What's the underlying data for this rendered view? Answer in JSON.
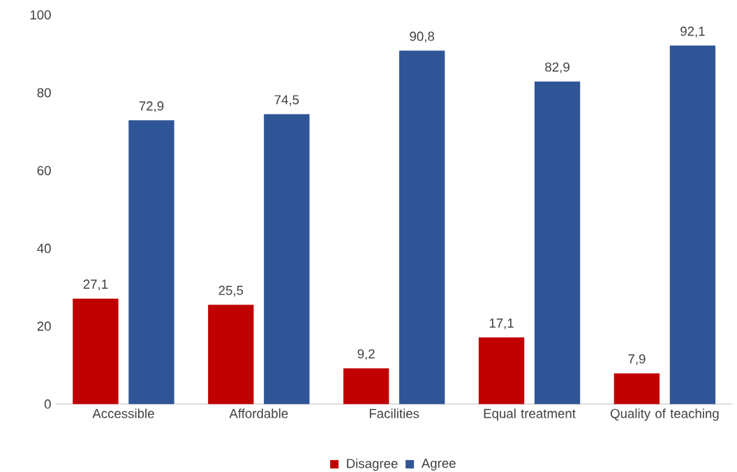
{
  "chart_data": {
    "type": "bar",
    "categories": [
      "Accessible",
      "Affordable",
      "Facilities",
      "Equal treatment",
      "Quality of teaching"
    ],
    "series": [
      {
        "name": "Disagree",
        "color": "#c00000",
        "values": [
          27.1,
          25.5,
          9.2,
          17.1,
          7.9
        ],
        "value_labels": [
          "27,1",
          "25,5",
          "9,2",
          "17,1",
          "7,9"
        ]
      },
      {
        "name": "Agree",
        "color": "#2f5597",
        "values": [
          72.9,
          74.5,
          90.8,
          82.9,
          92.1
        ],
        "value_labels": [
          "72,9",
          "74,5",
          "90,8",
          "82,9",
          "92,1"
        ]
      }
    ],
    "ylim": [
      0,
      100
    ],
    "yticks": [
      0,
      20,
      40,
      60,
      80,
      100
    ],
    "legend": "bottom",
    "grid": false
  }
}
